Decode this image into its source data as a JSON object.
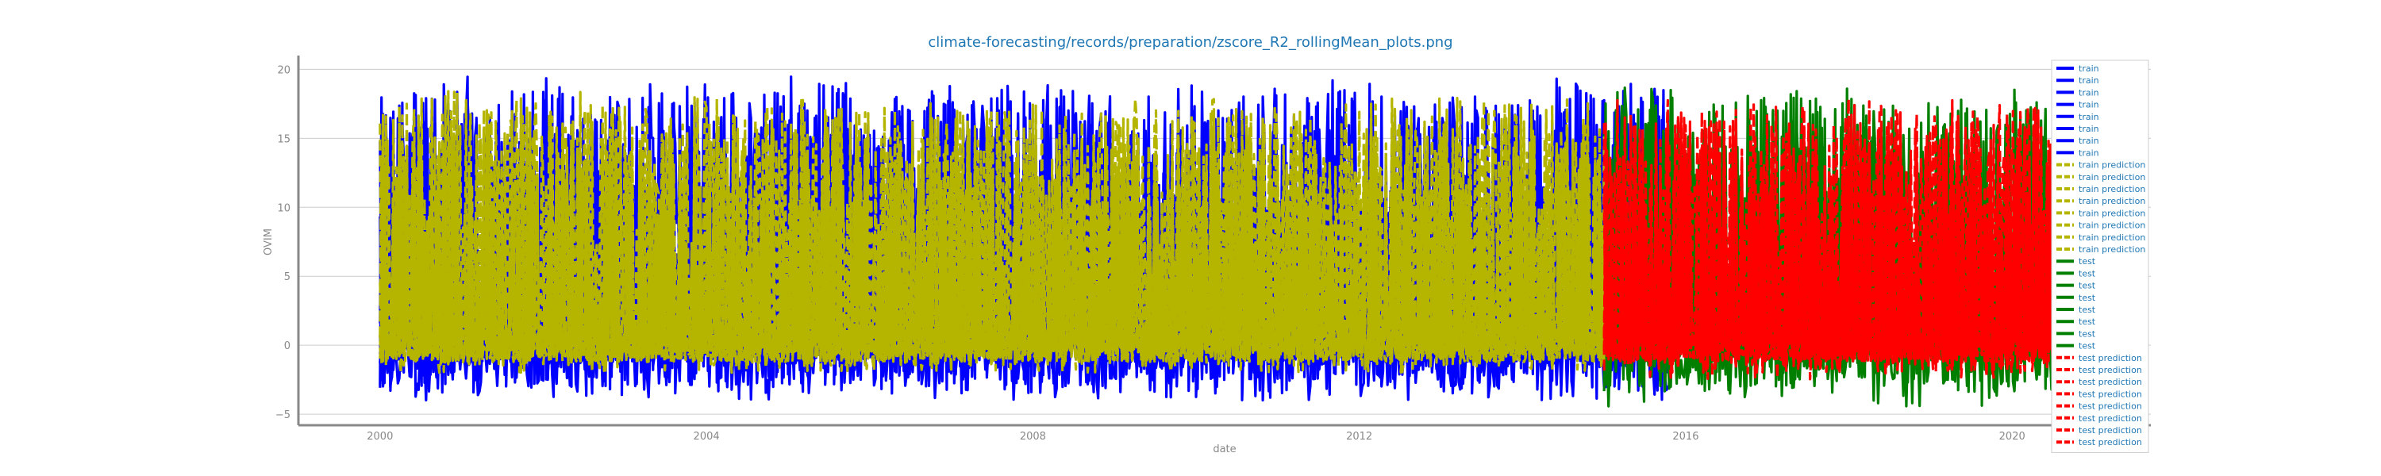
{
  "chart_data": {
    "type": "line",
    "title": "climate-forecasting/records/preparation/zscore_R2_rollingMean_plots.png",
    "xlabel": "date",
    "ylabel": "OVIM",
    "xlim": [
      1999.0,
      2021.7
    ],
    "ylim": [
      -5.8,
      21.0
    ],
    "x_ticks": [
      "2000",
      "2004",
      "2008",
      "2012",
      "2016",
      "2020"
    ],
    "y_ticks": [
      "−5",
      "0",
      "5",
      "10",
      "15",
      "20"
    ],
    "grid": true,
    "legend_position": "right",
    "split_date": 2015.0,
    "series": [
      {
        "name": "train",
        "color": "#0000ff",
        "style": "solid",
        "x_range": [
          2000.0,
          2015.8
        ],
        "y_min": -4.0,
        "y_max": 19.5
      },
      {
        "name": "train",
        "color": "#0000ff",
        "style": "solid",
        "x_range": [
          2000.0,
          2015.8
        ],
        "y_min": -3.5,
        "y_max": 19.0
      },
      {
        "name": "train",
        "color": "#0000ff",
        "style": "solid",
        "x_range": [
          2000.0,
          2015.8
        ],
        "y_min": -3.5,
        "y_max": 19.0
      },
      {
        "name": "train",
        "color": "#0000ff",
        "style": "solid",
        "x_range": [
          2000.0,
          2015.8
        ],
        "y_min": -3.0,
        "y_max": 18.5
      },
      {
        "name": "train",
        "color": "#0000ff",
        "style": "solid",
        "x_range": [
          2000.0,
          2015.8
        ],
        "y_min": -3.0,
        "y_max": 18.5
      },
      {
        "name": "train",
        "color": "#0000ff",
        "style": "solid",
        "x_range": [
          2000.0,
          2015.8
        ],
        "y_min": -3.0,
        "y_max": 18.0
      },
      {
        "name": "train",
        "color": "#0000ff",
        "style": "solid",
        "x_range": [
          2000.0,
          2015.8
        ],
        "y_min": -2.5,
        "y_max": 18.0
      },
      {
        "name": "train",
        "color": "#0000ff",
        "style": "solid",
        "x_range": [
          2000.0,
          2015.8
        ],
        "y_min": -2.5,
        "y_max": 17.5
      },
      {
        "name": "train prediction",
        "color": "#b5b500",
        "style": "dashed",
        "x_range": [
          2000.0,
          2015.0
        ],
        "y_min": -2.0,
        "y_max": 18.5
      },
      {
        "name": "train prediction",
        "color": "#b5b500",
        "style": "dashed",
        "x_range": [
          2000.0,
          2015.0
        ],
        "y_min": -2.0,
        "y_max": 18.0
      },
      {
        "name": "train prediction",
        "color": "#b5b500",
        "style": "dashed",
        "x_range": [
          2000.0,
          2015.0
        ],
        "y_min": -2.0,
        "y_max": 18.0
      },
      {
        "name": "train prediction",
        "color": "#b5b500",
        "style": "dashed",
        "x_range": [
          2000.0,
          2015.0
        ],
        "y_min": -1.5,
        "y_max": 17.5
      },
      {
        "name": "train prediction",
        "color": "#b5b500",
        "style": "dashed",
        "x_range": [
          2000.0,
          2015.0
        ],
        "y_min": -1.5,
        "y_max": 17.5
      },
      {
        "name": "train prediction",
        "color": "#b5b500",
        "style": "dashed",
        "x_range": [
          2000.0,
          2015.0
        ],
        "y_min": -1.5,
        "y_max": 17.0
      },
      {
        "name": "train prediction",
        "color": "#b5b500",
        "style": "dashed",
        "x_range": [
          2000.0,
          2015.0
        ],
        "y_min": -1.5,
        "y_max": 17.0
      },
      {
        "name": "train prediction",
        "color": "#b5b500",
        "style": "dashed",
        "x_range": [
          2000.0,
          2015.0
        ],
        "y_min": -1.5,
        "y_max": 16.5
      },
      {
        "name": "test",
        "color": "#007f00",
        "style": "solid",
        "x_range": [
          2015.0,
          2020.9
        ],
        "y_min": -4.5,
        "y_max": 19.0
      },
      {
        "name": "test",
        "color": "#007f00",
        "style": "solid",
        "x_range": [
          2015.0,
          2020.9
        ],
        "y_min": -3.5,
        "y_max": 18.5
      },
      {
        "name": "test",
        "color": "#007f00",
        "style": "solid",
        "x_range": [
          2015.0,
          2020.9
        ],
        "y_min": -3.5,
        "y_max": 18.5
      },
      {
        "name": "test",
        "color": "#007f00",
        "style": "solid",
        "x_range": [
          2015.0,
          2020.9
        ],
        "y_min": -3.0,
        "y_max": 18.0
      },
      {
        "name": "test",
        "color": "#007f00",
        "style": "solid",
        "x_range": [
          2015.0,
          2020.9
        ],
        "y_min": -3.0,
        "y_max": 18.0
      },
      {
        "name": "test",
        "color": "#007f00",
        "style": "solid",
        "x_range": [
          2015.0,
          2020.9
        ],
        "y_min": -3.0,
        "y_max": 17.5
      },
      {
        "name": "test",
        "color": "#007f00",
        "style": "solid",
        "x_range": [
          2015.0,
          2020.9
        ],
        "y_min": -2.5,
        "y_max": 17.5
      },
      {
        "name": "test",
        "color": "#007f00",
        "style": "solid",
        "x_range": [
          2015.0,
          2020.9
        ],
        "y_min": -2.5,
        "y_max": 17.0
      },
      {
        "name": "test prediction",
        "color": "#ff0000",
        "style": "dashed",
        "x_range": [
          2015.0,
          2020.9
        ],
        "y_min": -2.5,
        "y_max": 18.0
      },
      {
        "name": "test prediction",
        "color": "#ff0000",
        "style": "dashed",
        "x_range": [
          2015.0,
          2020.9
        ],
        "y_min": -2.0,
        "y_max": 18.0
      },
      {
        "name": "test prediction",
        "color": "#ff0000",
        "style": "dashed",
        "x_range": [
          2015.0,
          2020.9
        ],
        "y_min": -2.0,
        "y_max": 17.5
      },
      {
        "name": "test prediction",
        "color": "#ff0000",
        "style": "dashed",
        "x_range": [
          2015.0,
          2020.9
        ],
        "y_min": -2.0,
        "y_max": 17.5
      },
      {
        "name": "test prediction",
        "color": "#ff0000",
        "style": "dashed",
        "x_range": [
          2015.0,
          2020.9
        ],
        "y_min": -2.0,
        "y_max": 17.0
      },
      {
        "name": "test prediction",
        "color": "#ff0000",
        "style": "dashed",
        "x_range": [
          2015.0,
          2020.9
        ],
        "y_min": -1.5,
        "y_max": 17.0
      },
      {
        "name": "test prediction",
        "color": "#ff0000",
        "style": "dashed",
        "x_range": [
          2015.0,
          2020.9
        ],
        "y_min": -1.5,
        "y_max": 16.5
      },
      {
        "name": "test prediction",
        "color": "#ff0000",
        "style": "dashed",
        "x_range": [
          2015.0,
          2020.9
        ],
        "y_min": -1.5,
        "y_max": 16.5
      }
    ]
  }
}
